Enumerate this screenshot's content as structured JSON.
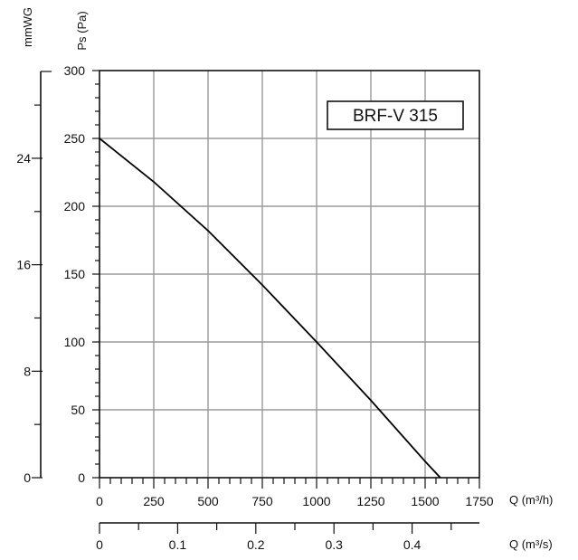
{
  "chart_data": {
    "type": "line",
    "title": "BRF-V 315",
    "xlabel": "Q (m³/h)",
    "ylabel": "Ps (Pa)",
    "xlim": [
      0,
      1750
    ],
    "ylim": [
      0,
      300
    ],
    "x_ticks": [
      "0",
      "250",
      "500",
      "750",
      "1000",
      "1250",
      "1500",
      "1750"
    ],
    "y_ticks": [
      "0",
      "50",
      "100",
      "150",
      "200",
      "250",
      "300"
    ],
    "grid": true,
    "secondary_x_axis": {
      "label": "Q (m³/s)",
      "ticks": [
        "0",
        "0.1",
        "0.2",
        "0.3",
        "0.4"
      ],
      "tick_values": [
        0,
        0.1,
        0.2,
        0.3,
        0.4
      ]
    },
    "secondary_y_axis": {
      "label": "mmWG",
      "ticks": [
        "0",
        "8",
        "16",
        "24"
      ],
      "tick_values": [
        0,
        8,
        16,
        24
      ]
    },
    "series": [
      {
        "x": [
          0,
          250,
          500,
          750,
          1000,
          1250,
          1500,
          1570
        ],
        "y": [
          250,
          218,
          182,
          142,
          100,
          57,
          12,
          0
        ]
      }
    ]
  }
}
